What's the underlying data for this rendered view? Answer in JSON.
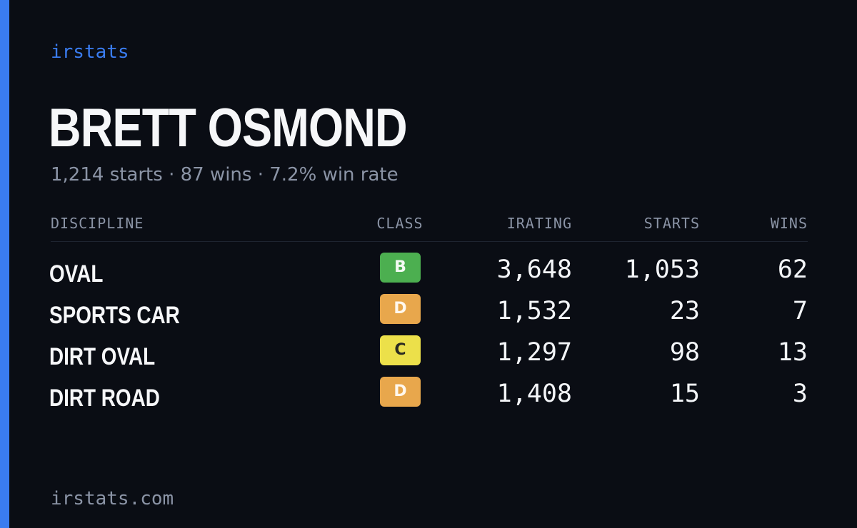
{
  "brand": "irstats",
  "driver": {
    "name": "BRETT OSMOND",
    "summary": "1,214 starts · 87 wins · 7.2% win rate"
  },
  "table": {
    "headers": {
      "discipline": "DISCIPLINE",
      "class": "CLASS",
      "irating": "IRATING",
      "starts": "STARTS",
      "wins": "WINS"
    },
    "rows": [
      {
        "discipline": "OVAL",
        "class": "B",
        "irating": "3,648",
        "starts": "1,053",
        "wins": "62"
      },
      {
        "discipline": "SPORTS CAR",
        "class": "D",
        "irating": "1,532",
        "starts": "23",
        "wins": "7"
      },
      {
        "discipline": "DIRT OVAL",
        "class": "C",
        "irating": "1,297",
        "starts": "98",
        "wins": "13"
      },
      {
        "discipline": "DIRT ROAD",
        "class": "D",
        "irating": "1,408",
        "starts": "15",
        "wins": "3"
      }
    ]
  },
  "footer": "irstats.com",
  "colors": {
    "accent": "#3a7cf0",
    "background": "#0a0d14",
    "class_B": "#4caf50",
    "class_C": "#ece04a",
    "class_D": "#e8a74c"
  }
}
